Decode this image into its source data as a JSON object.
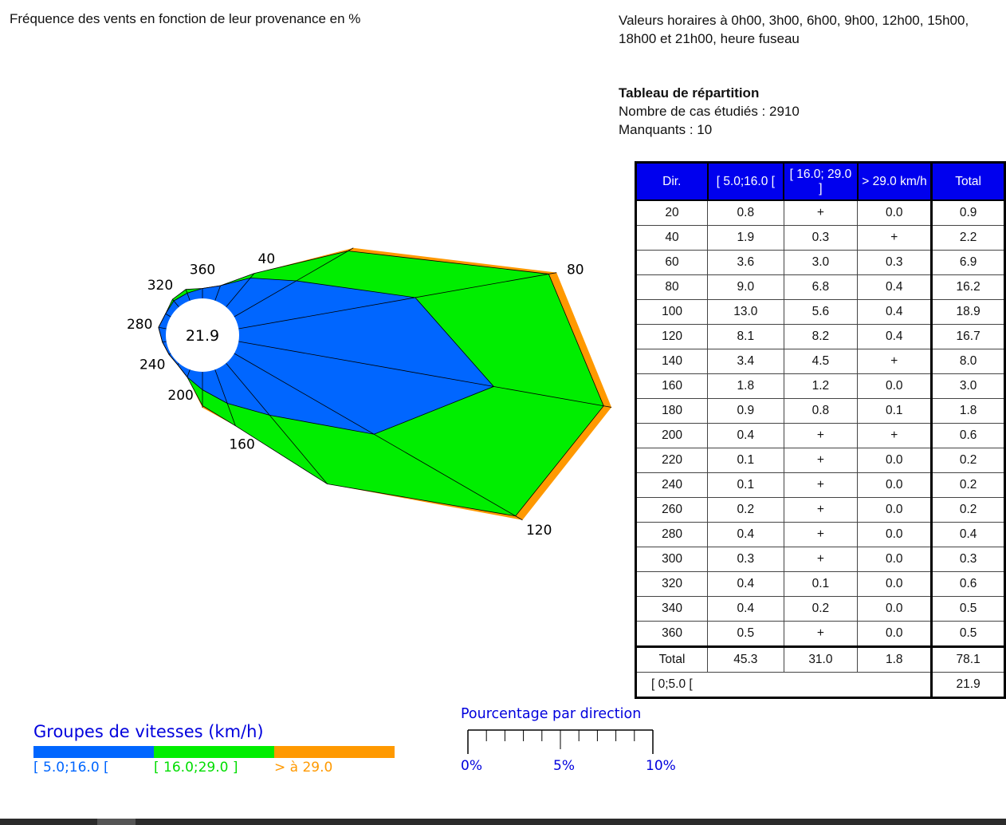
{
  "header": {
    "title": "Fréquence des vents en fonction de leur provenance en %",
    "info_line1": "Valeurs horaires à 0h00, 3h00, 6h00, 9h00, 12h00, 15h00,",
    "info_line2": "18h00 et 21h00, heure fuseau"
  },
  "table_info": {
    "title": "Tableau de répartition",
    "cases": "Nombre de cas étudiés : 2910",
    "missing": "Manquants : 10"
  },
  "table": {
    "headers": [
      "Dir.",
      "[ 5.0;16.0 [",
      "[ 16.0; 29.0 ]",
      "> 29.0 km/h",
      "Total"
    ],
    "rows": [
      [
        "20",
        "0.8",
        "+",
        "0.0",
        "0.9"
      ],
      [
        "40",
        "1.9",
        "0.3",
        "+",
        "2.2"
      ],
      [
        "60",
        "3.6",
        "3.0",
        "0.3",
        "6.9"
      ],
      [
        "80",
        "9.0",
        "6.8",
        "0.4",
        "16.2"
      ],
      [
        "100",
        "13.0",
        "5.6",
        "0.4",
        "18.9"
      ],
      [
        "120",
        "8.1",
        "8.2",
        "0.4",
        "16.7"
      ],
      [
        "140",
        "3.4",
        "4.5",
        "+",
        "8.0"
      ],
      [
        "160",
        "1.8",
        "1.2",
        "0.0",
        "3.0"
      ],
      [
        "180",
        "0.9",
        "0.8",
        "0.1",
        "1.8"
      ],
      [
        "200",
        "0.4",
        "+",
        "+",
        "0.6"
      ],
      [
        "220",
        "0.1",
        "+",
        "0.0",
        "0.2"
      ],
      [
        "240",
        "0.1",
        "+",
        "0.0",
        "0.2"
      ],
      [
        "260",
        "0.2",
        "+",
        "0.0",
        "0.2"
      ],
      [
        "280",
        "0.4",
        "+",
        "0.0",
        "0.4"
      ],
      [
        "300",
        "0.3",
        "+",
        "0.0",
        "0.3"
      ],
      [
        "320",
        "0.4",
        "0.1",
        "0.0",
        "0.6"
      ],
      [
        "340",
        "0.4",
        "0.2",
        "0.0",
        "0.5"
      ],
      [
        "360",
        "0.5",
        "+",
        "0.0",
        "0.5"
      ]
    ],
    "total": [
      "Total",
      "45.3",
      "31.0",
      "1.8",
      "78.1"
    ],
    "calm": [
      "[ 0;5.0 [",
      "21.9"
    ]
  },
  "legend": {
    "title": "Groupes de vitesses (km/h)",
    "groups": [
      {
        "label": "[ 5.0;16.0 [",
        "color": "#0066ff"
      },
      {
        "label": "[ 16.0;29.0 ]",
        "color": "#00ee00"
      },
      {
        "label": "> à 29.0",
        "color": "#ff9900"
      }
    ]
  },
  "scale": {
    "title": "Pourcentage par direction",
    "labels": [
      "0%",
      "5%",
      "10%"
    ]
  },
  "chart_data": {
    "type": "wind-rose",
    "calm_percent": "21.9",
    "direction_labels": [
      "40",
      "80",
      "120",
      "160",
      "200",
      "240",
      "280",
      "320",
      "360"
    ],
    "directions": [
      20,
      40,
      60,
      80,
      100,
      120,
      140,
      160,
      180,
      200,
      220,
      240,
      260,
      280,
      300,
      320,
      340,
      360
    ],
    "series": [
      {
        "name": "[ 5.0;16.0 [",
        "values": [
          0.8,
          1.9,
          3.6,
          9.0,
          13.0,
          8.1,
          3.4,
          1.8,
          0.9,
          0.4,
          0.1,
          0.1,
          0.2,
          0.4,
          0.3,
          0.4,
          0.4,
          0.5
        ]
      },
      {
        "name": "[ 16.0;29.0 ]",
        "values": [
          0.0,
          0.3,
          3.0,
          6.8,
          5.6,
          8.2,
          4.5,
          1.2,
          0.8,
          0.0,
          0.0,
          0.0,
          0.0,
          0.0,
          0.0,
          0.1,
          0.2,
          0.0
        ]
      },
      {
        "name": "> à 29.0",
        "values": [
          0.0,
          0.0,
          0.3,
          0.4,
          0.4,
          0.4,
          0.0,
          0.0,
          0.1,
          0.0,
          0.0,
          0.0,
          0.0,
          0.0,
          0.0,
          0.0,
          0.0,
          0.0
        ]
      }
    ],
    "colors": [
      "#0066ff",
      "#00ee00",
      "#ff9900"
    ],
    "scale_range": [
      0,
      10
    ]
  }
}
